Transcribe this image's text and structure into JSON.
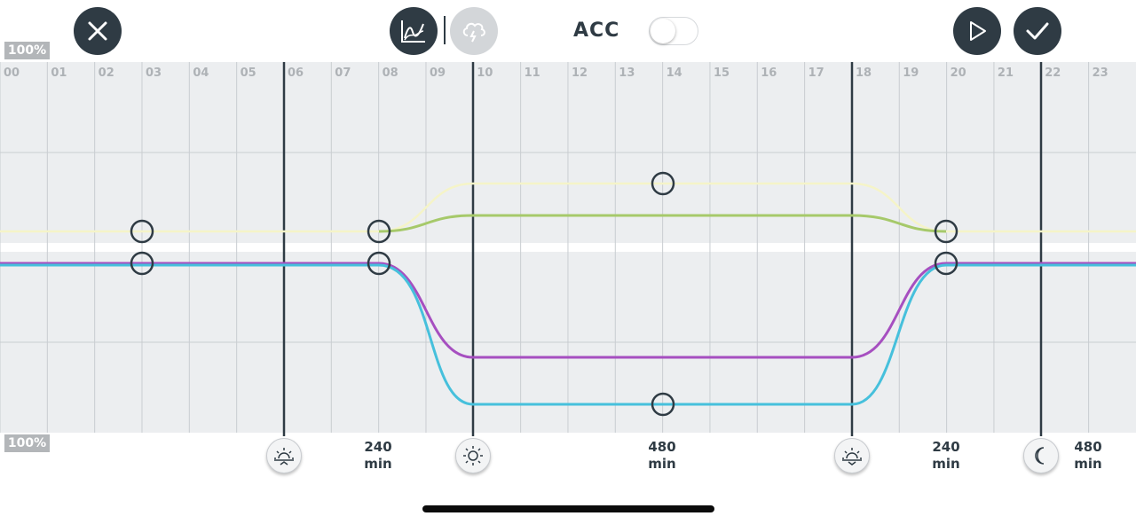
{
  "header": {
    "close_icon": "close-icon",
    "chart_mode_icon": "line-chart-icon",
    "weather_mode_icon": "cloud-lightning-icon",
    "acc_label": "ACC",
    "acc_enabled": false,
    "play_icon": "play-icon",
    "confirm_icon": "check-icon"
  },
  "scale": {
    "top_label": "100%",
    "bottom_label": "100%"
  },
  "timeline": {
    "hours": [
      "00",
      "01",
      "02",
      "03",
      "04",
      "05",
      "06",
      "07",
      "08",
      "09",
      "10",
      "11",
      "12",
      "13",
      "14",
      "15",
      "16",
      "17",
      "18",
      "19",
      "20",
      "21",
      "22",
      "23"
    ]
  },
  "phases": [
    {
      "icon": "sunrise-icon",
      "label_line1": "240",
      "label_line2": "min"
    },
    {
      "icon": "sun-icon",
      "label_line1": "480",
      "label_line2": "min"
    },
    {
      "icon": "sunset-icon",
      "label_line1": "240",
      "label_line2": "min"
    },
    {
      "icon": "moon-icon",
      "label_line1": "480",
      "label_line2": "min"
    }
  ],
  "colors": {
    "background": "#eceef0",
    "grid": "#c9cdd1",
    "phase_line": "#2f3b44",
    "white_channel": "#f5f4c8",
    "green_channel": "#a6c96a",
    "purple_channel": "#a64fc0",
    "cyan_channel": "#46c0dc",
    "dark_button": "#2f3b44",
    "inactive_button": "#d3d6d9"
  }
}
